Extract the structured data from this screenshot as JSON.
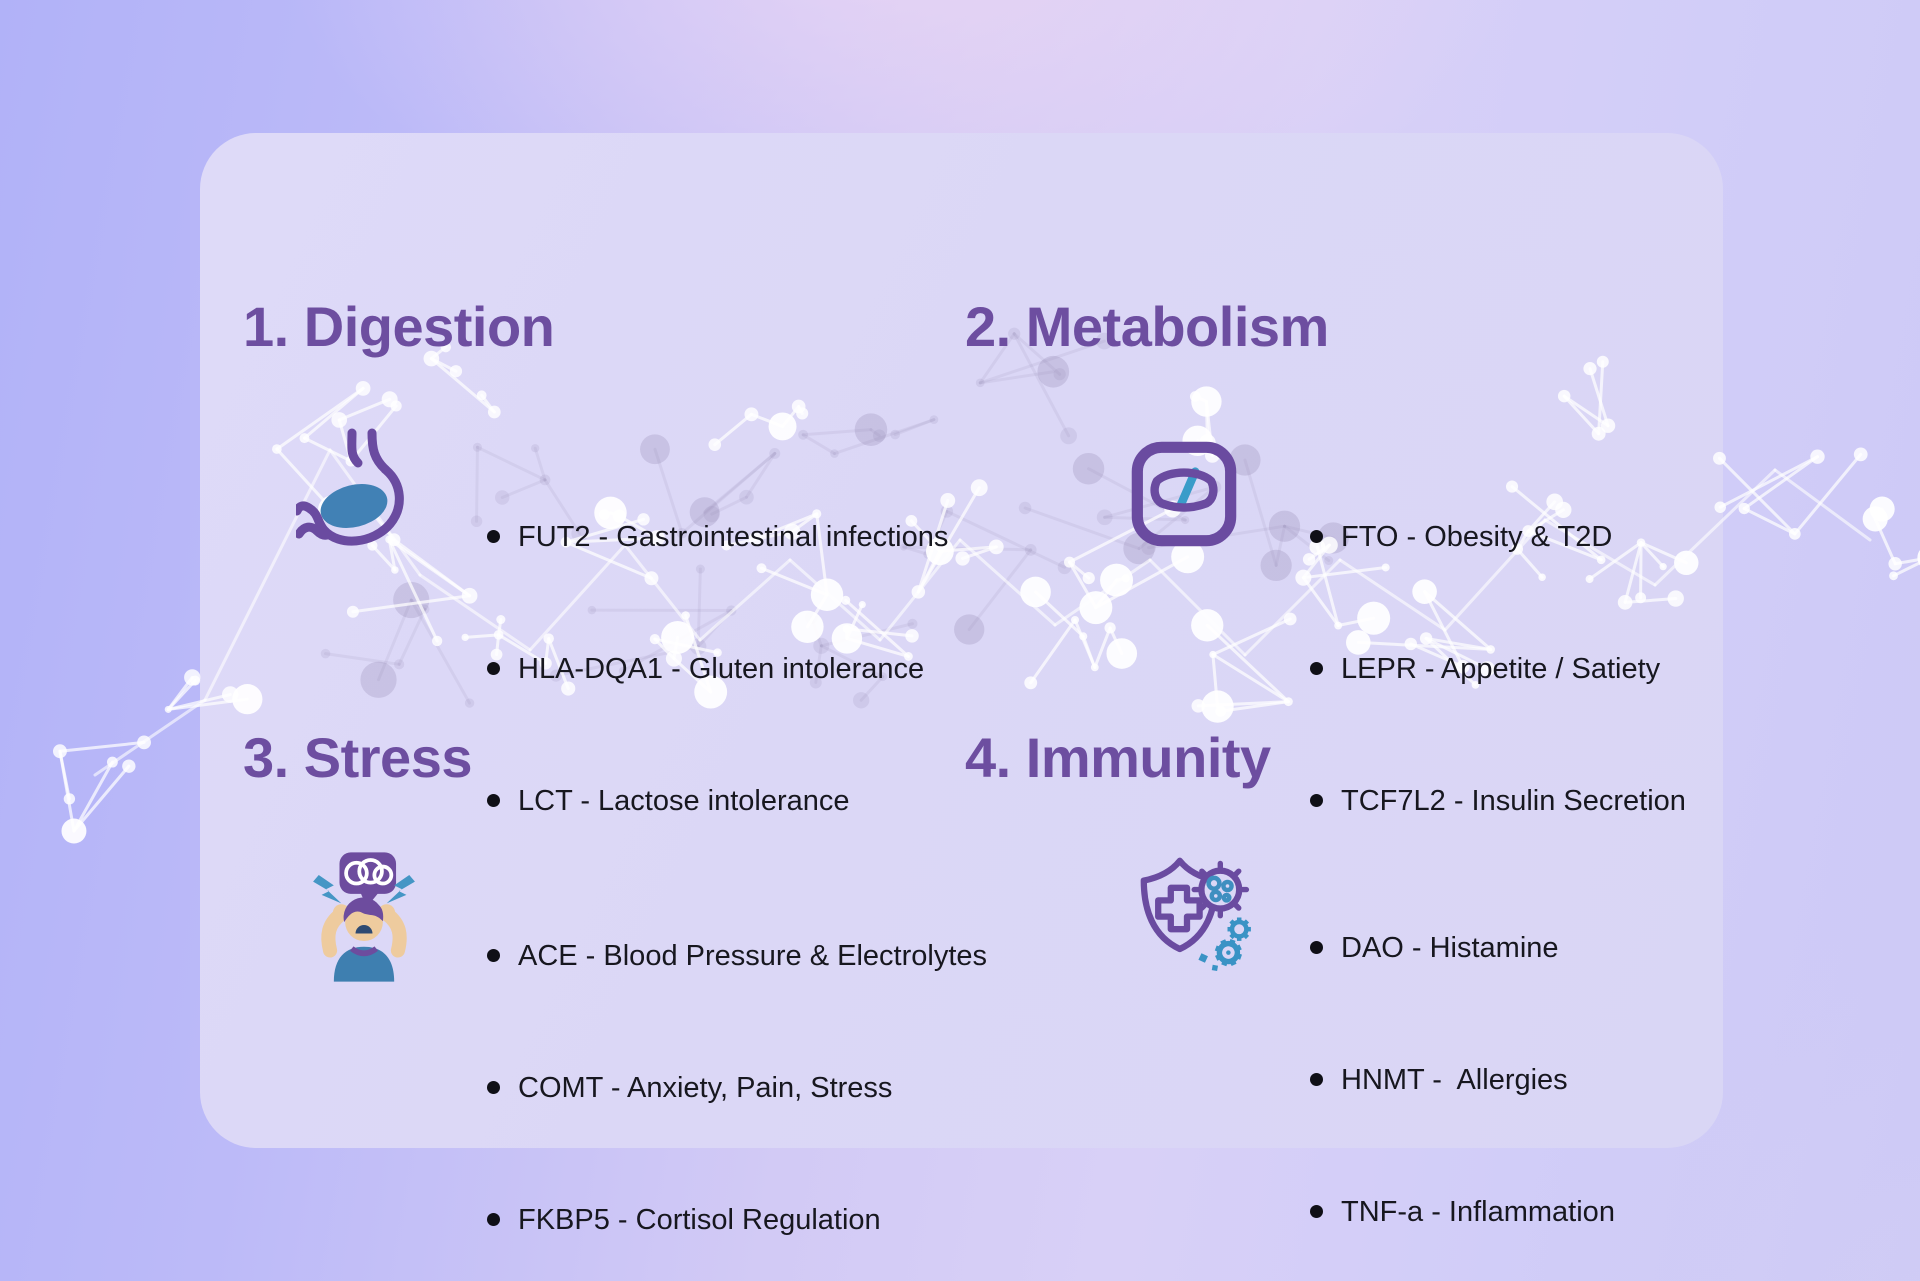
{
  "colors": {
    "title_purple": "#6d4ea0",
    "body_text": "#17171f",
    "icon_purple": "#6a4ba0",
    "icon_blue": "#4596c5",
    "card_background": "#dbd7f6"
  },
  "card": {
    "sections": [
      {
        "id": "digestion",
        "title": "1. Digestion",
        "icon": "stomach-icon",
        "items": [
          "FUT2 - Gastrointestinal infections",
          "HLA-DQA1 - Gluten intolerance",
          "LCT - Lactose intolerance"
        ]
      },
      {
        "id": "metabolism",
        "title": "2. Metabolism",
        "icon": "weight-scale-icon",
        "items": [
          "FTO - Obesity & T2D",
          "LEPR - Appetite / Satiety",
          "TCF7L2 - Insulin Secretion"
        ]
      },
      {
        "id": "stress",
        "title": "3. Stress",
        "icon": "stressed-person-icon",
        "items": [
          "ACE - Blood Pressure & Electrolytes",
          "COMT - Anxiety, Pain, Stress",
          "FKBP5 - Cortisol Regulation"
        ]
      },
      {
        "id": "immunity",
        "title": "4. Immunity",
        "icon": "immune-shield-icon",
        "items": [
          "DAO - Histamine",
          "HNMT -  Allergies",
          "TNF-a - Inflammation"
        ]
      }
    ]
  }
}
